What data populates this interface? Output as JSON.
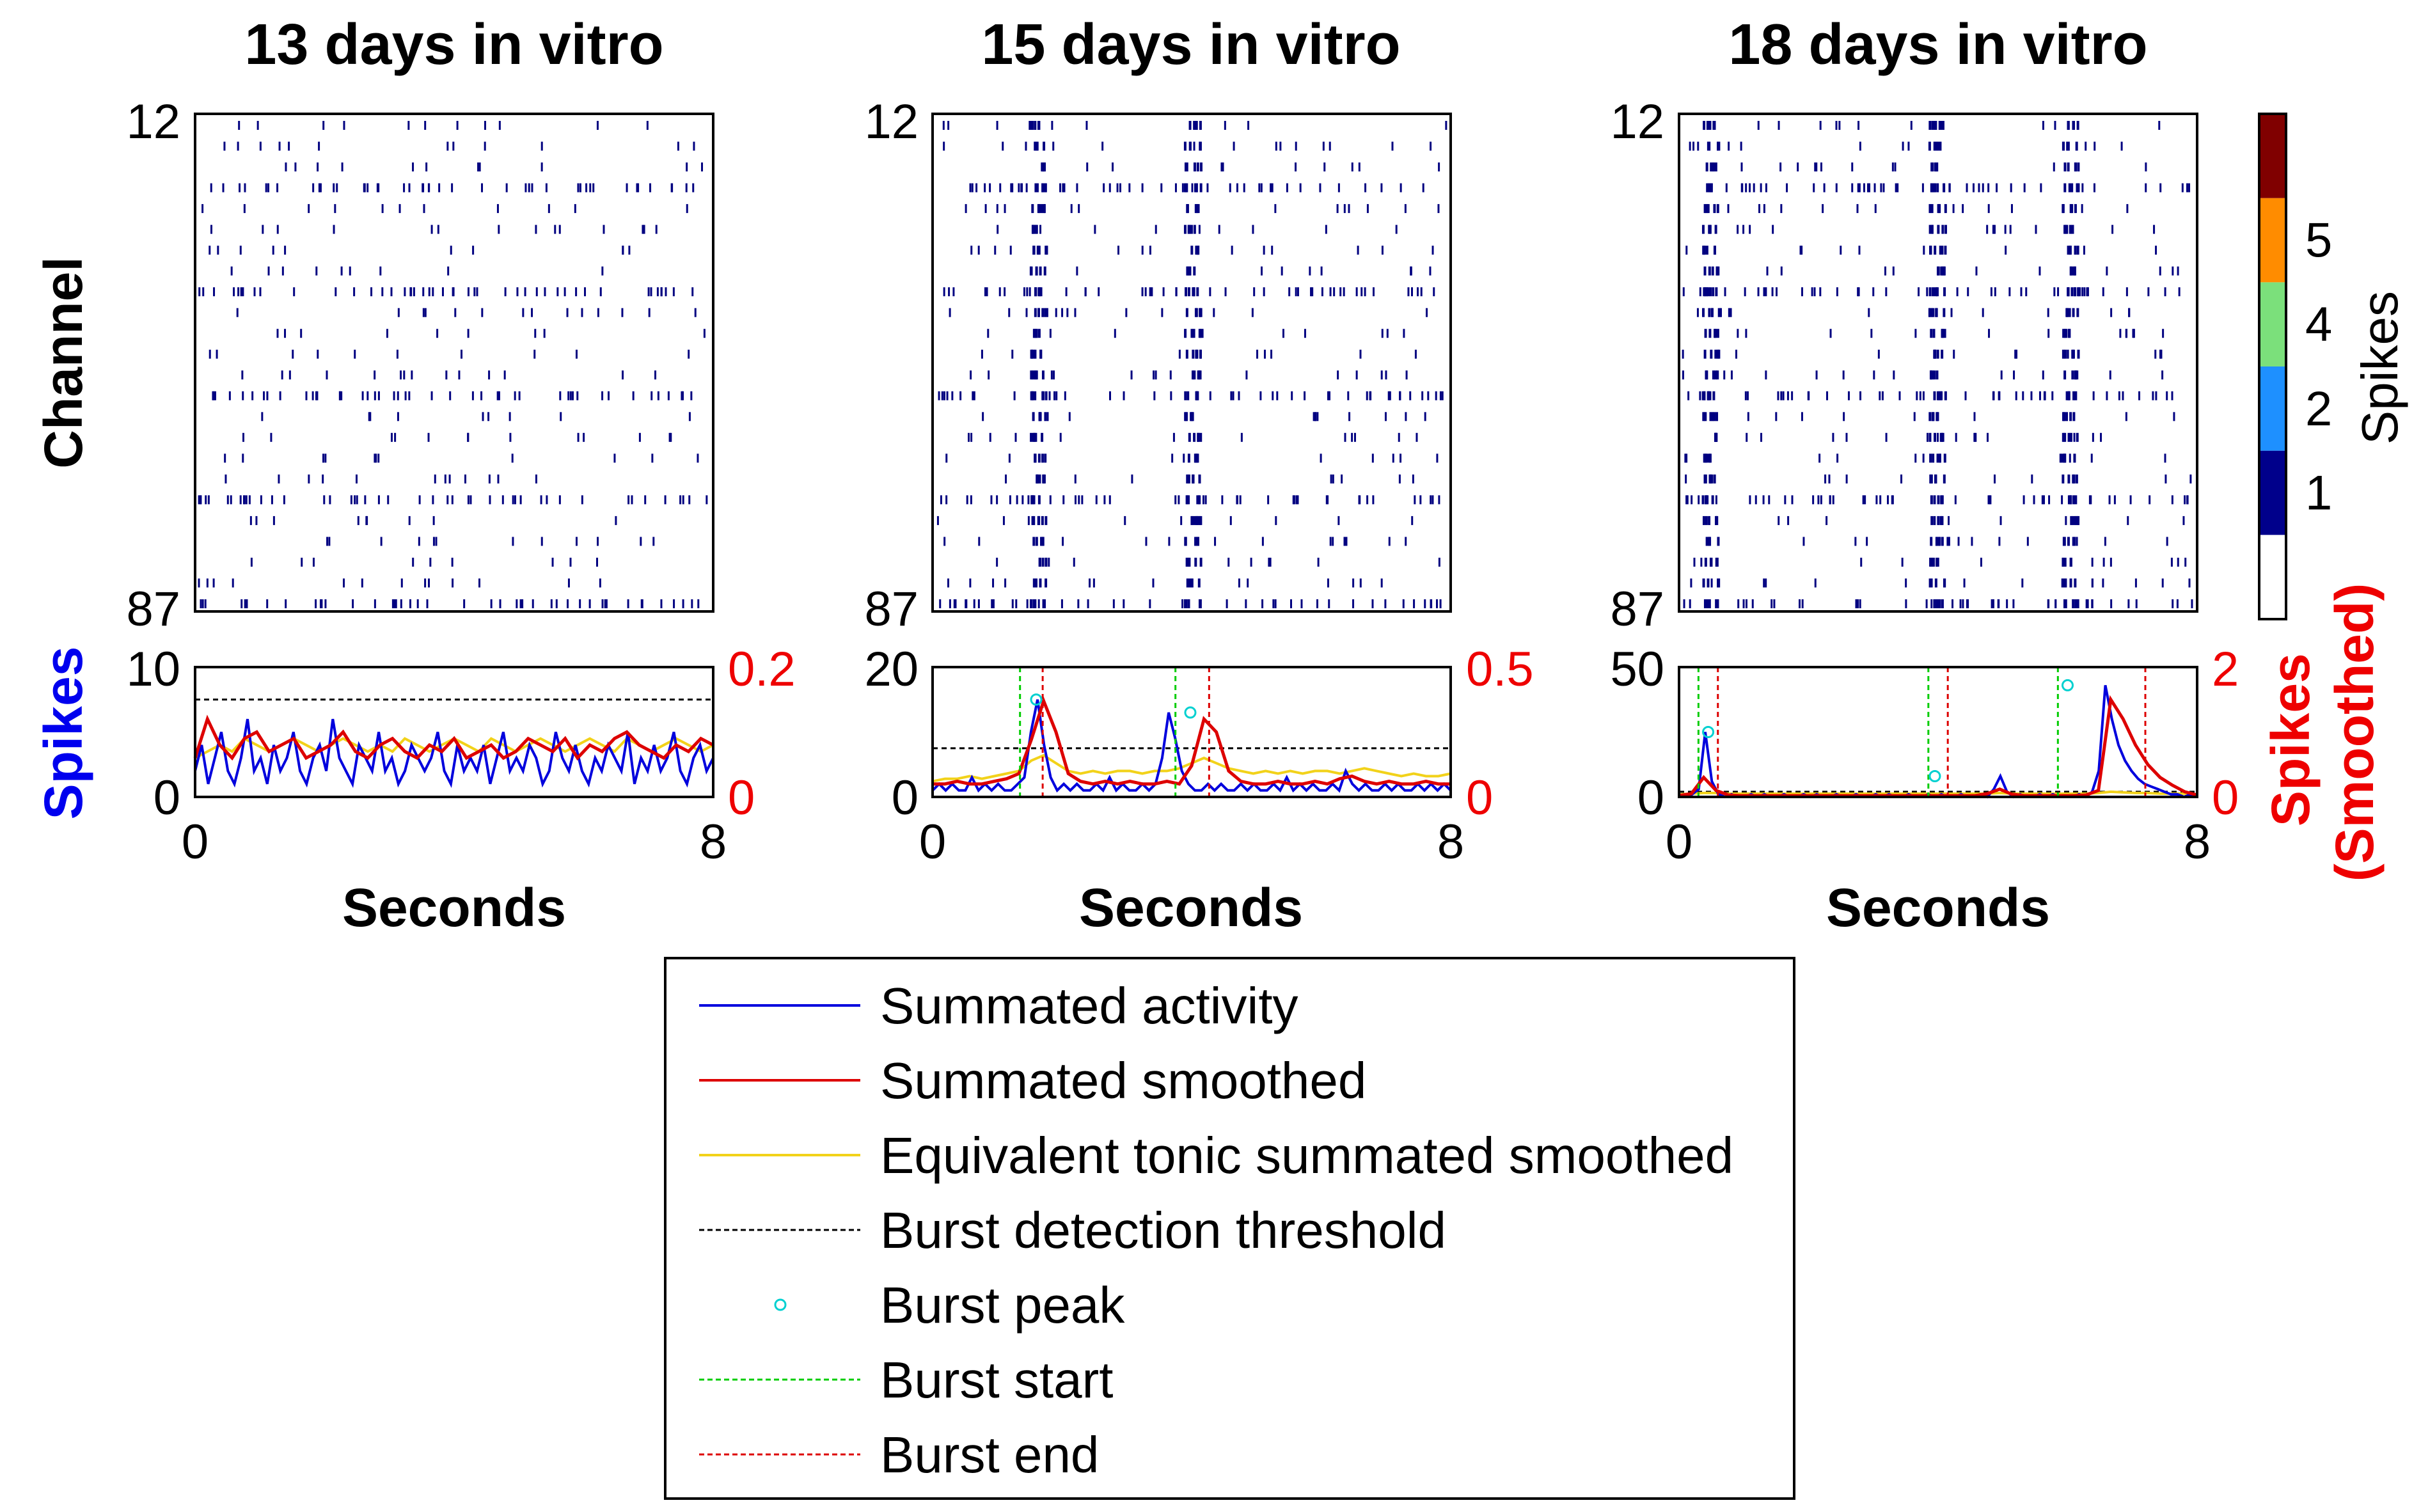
{
  "chart_data": {
    "type": "raster-with-activity",
    "colorbar": {
      "label": "Spikes",
      "tick_labels": [
        "1",
        "2",
        "4",
        "5"
      ],
      "colors": [
        "#ffffff",
        "#00008b",
        "#1e90ff",
        "#7be07b",
        "#ff8c00",
        "#800000"
      ]
    },
    "raster_y_ticks": [
      "12",
      "87"
    ],
    "x_tick_labels": [
      "0",
      "8"
    ],
    "x_range": [
      0,
      8
    ],
    "xlabel": "Seconds",
    "ylabel_raster": "Channel",
    "ylabel_left": "Spikes",
    "ylabel_right": "Spikes (Smoothed)",
    "panels": [
      {
        "title": "13 days in vitro",
        "y_left_ticks": [
          "0",
          "10"
        ],
        "y_left_max": 10,
        "y_right_ticks": [
          "0",
          "0.2"
        ],
        "y_right_max": 0.2,
        "threshold": 7.5,
        "bursts": [],
        "summated_activity": [
          2,
          4,
          1,
          3,
          5,
          2,
          1,
          3,
          6,
          2,
          3,
          1,
          4,
          2,
          3,
          5,
          2,
          1,
          3,
          4,
          2,
          6,
          3,
          2,
          1,
          4,
          3,
          2,
          5,
          2,
          3,
          1,
          2,
          4,
          3,
          2,
          3,
          5,
          2,
          1,
          4,
          2,
          3,
          2,
          4,
          1,
          3,
          5,
          2,
          3,
          2,
          4,
          3,
          1,
          2,
          5,
          3,
          2,
          4,
          2,
          1,
          3,
          2,
          4,
          3,
          2,
          5,
          1,
          3,
          2,
          4,
          2,
          3,
          5,
          2,
          1,
          3,
          4,
          2,
          3
        ],
        "summated_smoothed": [
          0.06,
          0.12,
          0.08,
          0.06,
          0.09,
          0.1,
          0.07,
          0.08,
          0.09,
          0.06,
          0.07,
          0.08,
          0.1,
          0.07,
          0.06,
          0.08,
          0.09,
          0.07,
          0.06,
          0.08,
          0.07,
          0.09,
          0.06,
          0.07,
          0.08,
          0.06,
          0.07,
          0.09,
          0.08,
          0.07,
          0.09,
          0.06,
          0.08,
          0.07,
          0.09,
          0.1,
          0.08,
          0.07,
          0.06,
          0.08,
          0.07,
          0.09,
          0.08
        ],
        "equivalent_tonic": [
          0.06,
          0.07,
          0.08,
          0.07,
          0.09,
          0.08,
          0.07,
          0.08,
          0.09,
          0.08,
          0.07,
          0.08,
          0.09,
          0.08,
          0.07,
          0.08,
          0.07,
          0.09,
          0.08,
          0.07,
          0.08,
          0.09,
          0.08,
          0.07,
          0.09,
          0.08,
          0.07,
          0.08,
          0.09,
          0.08,
          0.07,
          0.08,
          0.09,
          0.08,
          0.07,
          0.09,
          0.08,
          0.07,
          0.08,
          0.09,
          0.08,
          0.07,
          0.08
        ]
      },
      {
        "title": "15 days in vitro",
        "y_left_ticks": [
          "0",
          "20"
        ],
        "y_left_max": 20,
        "y_right_ticks": [
          "0",
          "0.5"
        ],
        "y_right_max": 0.5,
        "threshold": 7.5,
        "bursts": [
          {
            "start": 1.35,
            "peak_x": 1.6,
            "peak_y": 15,
            "end": 1.7
          },
          {
            "start": 3.75,
            "peak_x": 3.98,
            "peak_y": 13,
            "end": 4.27
          }
        ],
        "summated_activity": [
          1,
          2,
          1,
          2,
          1,
          1,
          3,
          1,
          2,
          1,
          2,
          1,
          1,
          2,
          3,
          10,
          15,
          8,
          3,
          1,
          2,
          1,
          2,
          1,
          1,
          2,
          1,
          3,
          1,
          2,
          1,
          1,
          2,
          1,
          2,
          6,
          13,
          9,
          4,
          2,
          1,
          1,
          2,
          1,
          2,
          1,
          1,
          2,
          1,
          2,
          1,
          1,
          2,
          1,
          3,
          1,
          2,
          1,
          2,
          1,
          1,
          2,
          1,
          4,
          2,
          1,
          2,
          1,
          1,
          2,
          1,
          2,
          1,
          1,
          2,
          1,
          2,
          1,
          2,
          1
        ],
        "summated_smoothed": [
          0.05,
          0.05,
          0.06,
          0.05,
          0.05,
          0.06,
          0.07,
          0.09,
          0.22,
          0.37,
          0.25,
          0.09,
          0.06,
          0.05,
          0.06,
          0.05,
          0.06,
          0.05,
          0.05,
          0.06,
          0.05,
          0.12,
          0.3,
          0.25,
          0.1,
          0.06,
          0.05,
          0.05,
          0.06,
          0.05,
          0.05,
          0.06,
          0.05,
          0.07,
          0.08,
          0.06,
          0.05,
          0.06,
          0.05,
          0.05,
          0.06,
          0.05,
          0.05
        ],
        "equivalent_tonic": [
          0.06,
          0.07,
          0.07,
          0.08,
          0.07,
          0.08,
          0.09,
          0.1,
          0.14,
          0.16,
          0.13,
          0.1,
          0.09,
          0.1,
          0.09,
          0.1,
          0.1,
          0.09,
          0.1,
          0.1,
          0.11,
          0.13,
          0.15,
          0.13,
          0.11,
          0.1,
          0.09,
          0.1,
          0.09,
          0.1,
          0.09,
          0.1,
          0.1,
          0.09,
          0.1,
          0.11,
          0.1,
          0.09,
          0.08,
          0.09,
          0.08,
          0.08,
          0.09
        ]
      },
      {
        "title": "18 days in vitro",
        "y_left_ticks": [
          "0",
          "50"
        ],
        "y_left_max": 50,
        "y_right_ticks": [
          "0",
          "2"
        ],
        "y_right_max": 2,
        "threshold": 2,
        "bursts": [
          {
            "start": 0.3,
            "peak_x": 0.45,
            "peak_y": 25,
            "end": 0.6
          },
          {
            "start": 3.85,
            "peak_x": 3.95,
            "peak_y": 8,
            "end": 4.15
          },
          {
            "start": 5.85,
            "peak_x": 6.0,
            "peak_y": 43,
            "end": 7.2
          }
        ],
        "summated_activity": [
          1,
          0,
          1,
          3,
          25,
          6,
          1,
          0,
          1,
          0,
          0,
          1,
          0,
          1,
          0,
          0,
          1,
          0,
          0,
          1,
          0,
          1,
          0,
          0,
          1,
          0,
          0,
          1,
          0,
          0,
          1,
          0,
          1,
          0,
          0,
          1,
          0,
          0,
          1,
          0,
          1,
          0,
          0,
          1,
          0,
          0,
          1,
          0,
          3,
          8,
          2,
          0,
          1,
          0,
          0,
          1,
          0,
          1,
          0,
          0,
          0,
          1,
          0,
          2,
          10,
          43,
          30,
          20,
          14,
          10,
          7,
          5,
          4,
          3,
          2,
          1,
          1,
          0,
          1,
          0
        ],
        "summated_smoothed": [
          0.02,
          0.05,
          0.3,
          0.1,
          0.03,
          0.02,
          0.02,
          0.02,
          0.02,
          0.02,
          0.02,
          0.02,
          0.02,
          0.02,
          0.02,
          0.02,
          0.02,
          0.02,
          0.02,
          0.02,
          0.02,
          0.02,
          0.02,
          0.02,
          0.02,
          0.05,
          0.12,
          0.04,
          0.02,
          0.02,
          0.02,
          0.02,
          0.02,
          0.03,
          0.1,
          1.5,
          1.2,
          0.8,
          0.5,
          0.3,
          0.18,
          0.08,
          0.03
        ],
        "equivalent_tonic": [
          0.04,
          0.05,
          0.06,
          0.06,
          0.05,
          0.05,
          0.05,
          0.05,
          0.05,
          0.05,
          0.05,
          0.05,
          0.05,
          0.05,
          0.05,
          0.05,
          0.05,
          0.05,
          0.05,
          0.05,
          0.05,
          0.05,
          0.05,
          0.05,
          0.05,
          0.05,
          0.06,
          0.05,
          0.05,
          0.05,
          0.05,
          0.05,
          0.05,
          0.05,
          0.06,
          0.08,
          0.07,
          0.06,
          0.06,
          0.05,
          0.05,
          0.05,
          0.04
        ]
      }
    ],
    "legend": {
      "entries": [
        {
          "label": "Summated activity",
          "color": "#0000dd",
          "style": "solid"
        },
        {
          "label": "Summated smoothed",
          "color": "#dd0000",
          "style": "solid"
        },
        {
          "label": "Equivalent tonic summated smoothed",
          "color": "#f2d21a",
          "style": "solid"
        },
        {
          "label": "Burst detection threshold",
          "color": "#000000",
          "style": "dashed"
        },
        {
          "label": "Burst peak",
          "color": "#00d0d0",
          "style": "marker"
        },
        {
          "label": "Burst start",
          "color": "#00cc00",
          "style": "dashed"
        },
        {
          "label": "Burst end",
          "color": "#dd0000",
          "style": "dashed"
        }
      ]
    },
    "colors": {
      "activity": "#0000dd",
      "smoothed": "#dd0000",
      "tonic": "#f2d21a",
      "threshold": "#000000",
      "peak": "#00d0d0",
      "start": "#00cc00",
      "end": "#dd0000",
      "left_axis_label": "#0000ee",
      "right_axis_label": "#ee0000",
      "raster_spike": "#000080"
    }
  }
}
